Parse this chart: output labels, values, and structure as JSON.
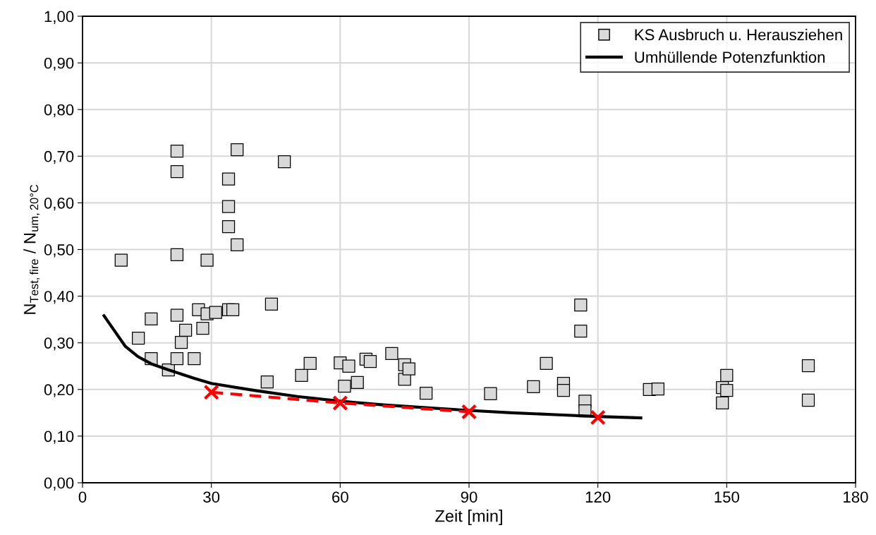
{
  "chart_data": {
    "type": "scatter",
    "xlabel": "Zeit [min]",
    "ylabel": "N$_{Test,fire}$ / N$_{um,20°C}$",
    "xlim": [
      0,
      180
    ],
    "xticks": [
      0,
      30,
      60,
      90,
      120,
      150,
      180
    ],
    "ylim": [
      0,
      1
    ],
    "yticks": [
      {
        "value": 0,
        "label": "0,00"
      },
      {
        "value": 0.1,
        "label": "0,10"
      },
      {
        "value": 0.2,
        "label": "0,20"
      },
      {
        "value": 0.3,
        "label": "0,30"
      },
      {
        "value": 0.4,
        "label": "0,40"
      },
      {
        "value": 0.5,
        "label": "0,50"
      },
      {
        "value": 0.6,
        "label": "0,60"
      },
      {
        "value": 0.7,
        "label": "0,70"
      },
      {
        "value": 0.8,
        "label": "0,80"
      },
      {
        "value": 0.9,
        "label": "0,90"
      },
      {
        "value": 1.0,
        "label": "1,00"
      }
    ],
    "grid": true,
    "legend": "top right",
    "series": [
      {
        "name": "KS Ausbruch u. Herausziehen",
        "marker": "square",
        "color": "#d9d9d9",
        "x": [
          9,
          13,
          16,
          16,
          20,
          22,
          22,
          22,
          22,
          22,
          23,
          24,
          26,
          27,
          28,
          29,
          29,
          31,
          34,
          34,
          34,
          34,
          35,
          36,
          36,
          43,
          44,
          47,
          51,
          53,
          60,
          61,
          62,
          64,
          66,
          67,
          72,
          75,
          75,
          76,
          80,
          95,
          105,
          108,
          112,
          112,
          116,
          116,
          117,
          117,
          132,
          134,
          149,
          149,
          150,
          150,
          169,
          169
        ],
        "values": [
          0.477,
          0.31,
          0.351,
          0.266,
          0.242,
          0.711,
          0.667,
          0.489,
          0.359,
          0.266,
          0.301,
          0.327,
          0.266,
          0.371,
          0.331,
          0.477,
          0.362,
          0.365,
          0.651,
          0.592,
          0.549,
          0.371,
          0.371,
          0.714,
          0.51,
          0.216,
          0.383,
          0.688,
          0.23,
          0.256,
          0.257,
          0.207,
          0.25,
          0.215,
          0.265,
          0.26,
          0.277,
          0.253,
          0.222,
          0.244,
          0.192,
          0.191,
          0.206,
          0.256,
          0.213,
          0.198,
          0.381,
          0.325,
          0.175,
          0.154,
          0.2,
          0.201,
          0.204,
          0.171,
          0.23,
          0.198,
          0.251,
          0.177
        ]
      },
      {
        "name": "Umhüllende Potenzfunktion",
        "type": "line",
        "marker": "none",
        "line_style": "solid",
        "color": "#000000",
        "x": [
          5,
          10,
          13,
          16,
          20,
          26,
          30,
          40,
          50,
          60,
          70,
          80,
          90,
          100,
          110,
          120,
          130
        ],
        "values": [
          0.358,
          0.292,
          0.27,
          0.255,
          0.242,
          0.224,
          0.213,
          0.198,
          0.185,
          0.175,
          0.167,
          0.161,
          0.155,
          0.15,
          0.146,
          0.142,
          0.139
        ]
      },
      {
        "type": "line",
        "marker": "none",
        "line_style": "dashed",
        "color": "#ff0000",
        "x": [
          30,
          60,
          90
        ],
        "values": [
          0.194,
          0.171,
          0.152
        ]
      },
      {
        "marker": "cross",
        "color": "#ff0000",
        "x": [
          30,
          60,
          90,
          120
        ],
        "values": [
          0.194,
          0.171,
          0.152,
          0.14
        ]
      }
    ]
  }
}
